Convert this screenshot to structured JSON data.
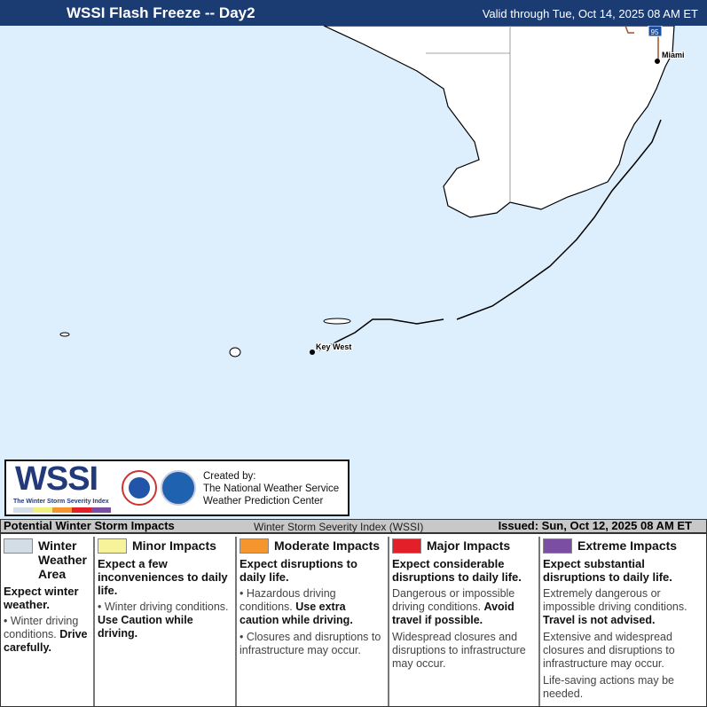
{
  "header": {
    "title": "WSSI Flash Freeze -- Day2",
    "valid": "Valid through Tue, Oct 14, 2025 08 AM ET"
  },
  "map": {
    "labels": {
      "miami": "Miami",
      "key_west": "Key West",
      "interstate": "95"
    },
    "ocean_color": "#ddeefc"
  },
  "logo": {
    "wssi": "WSSI",
    "subtitle": "The Winter Storm Severity Index",
    "credit": [
      "Created by:",
      "The National Weather Service",
      "Weather Prediction Center"
    ]
  },
  "subheader": {
    "left": "Potential Winter Storm Impacts",
    "center": "Winter Storm Severity Index (WSSI)",
    "right": "Issued: Sun, Oct 12, 2025 08 AM ET"
  },
  "legend": [
    {
      "title": "Winter Weather Area",
      "color": "#d3dde6",
      "expect": "Expect winter weather.",
      "bullets": [
        {
          "text": "Winter driving conditions. ",
          "bold": "Drive carefully."
        }
      ]
    },
    {
      "title": "Minor Impacts",
      "color": "#f7f39b",
      "expect": "Expect a few inconveniences to daily life.",
      "bullets": [
        {
          "text": "Winter driving conditions. ",
          "bold": "Use Caution while driving."
        }
      ]
    },
    {
      "title": "Moderate Impacts",
      "color": "#f5952e",
      "expect": "Expect disruptions to daily life.",
      "bullets": [
        {
          "text": "Hazardous driving conditions. ",
          "bold": "Use extra caution while driving."
        },
        {
          "text": "Closures and disruptions to infrastructure may occur.",
          "bold": ""
        }
      ]
    },
    {
      "title": "Major Impacts",
      "color": "#e3202a",
      "expect": "Expect considerable disruptions to daily life.",
      "bullets": [
        {
          "text": "Dangerous or impossible driving conditions. ",
          "bold": "Avoid travel if possible."
        },
        {
          "text": "Widespread closures and disruptions to infrastructure may occur.",
          "bold": ""
        }
      ]
    },
    {
      "title": "Extreme Impacts",
      "color": "#7b4ea3",
      "expect": "Expect substantial disruptions to daily life.",
      "bullets": [
        {
          "text": "Extremely dangerous or impossible driving conditions. ",
          "bold": "Travel is not advised."
        },
        {
          "text": "Extensive and widespread closures and disruptions to infrastructure may occur.",
          "bold": ""
        },
        {
          "text": "Life-saving actions may be needed.",
          "bold": ""
        }
      ]
    }
  ]
}
